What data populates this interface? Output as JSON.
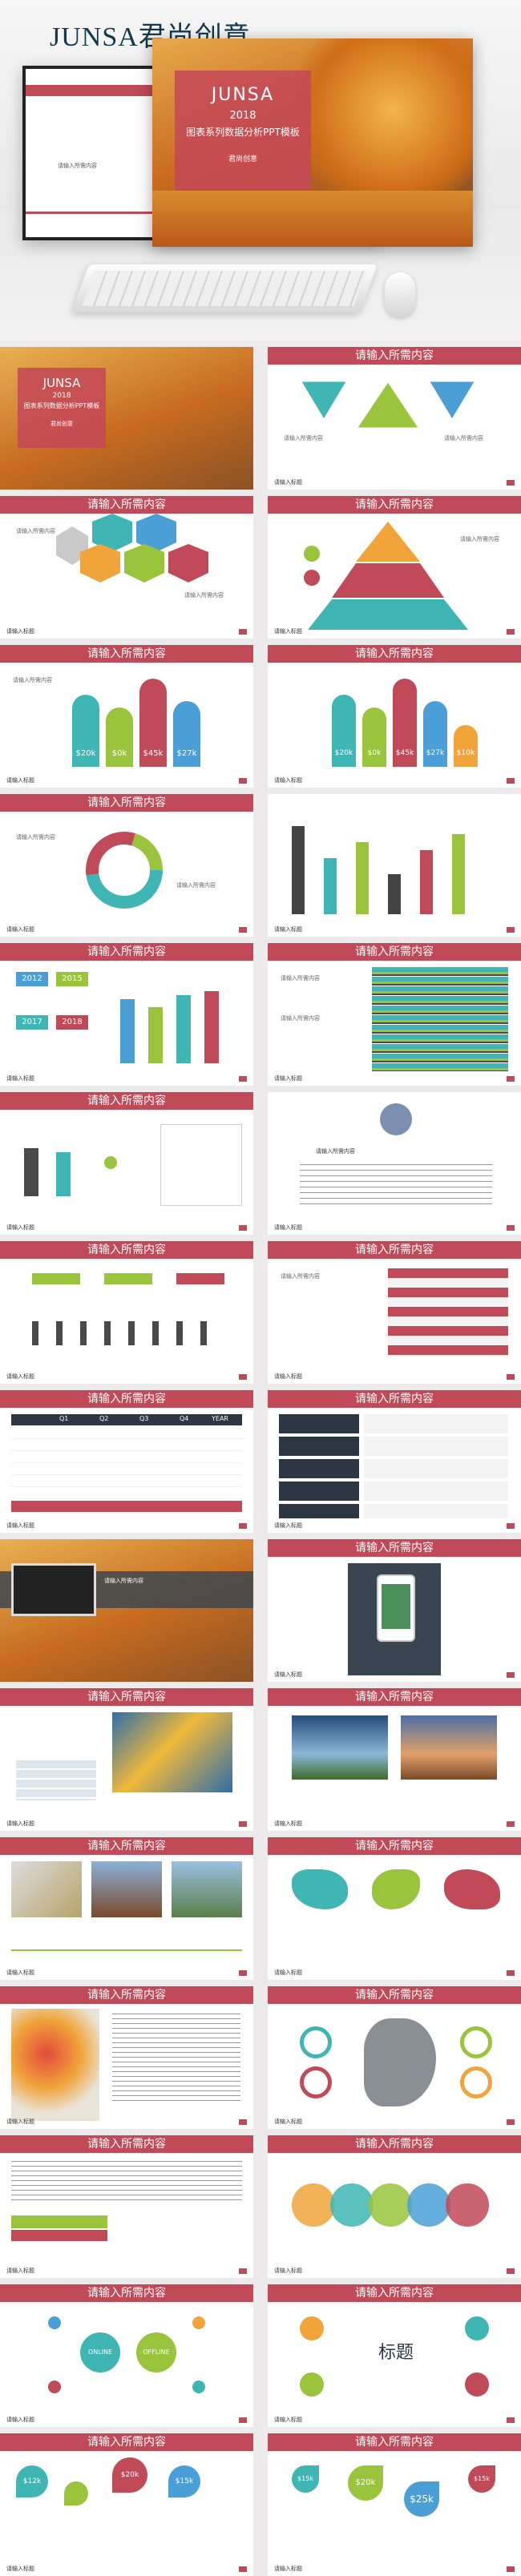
{
  "brand": "JUNSA君尚创意",
  "cover": {
    "title": "JUNSA",
    "year": "2018",
    "subtitle": "图表系列数据分析PPT模板",
    "logo": "君尚创意"
  },
  "hero_note": "请输入所需内容",
  "slide_heading": "请输入所需内容",
  "footer": "请输入标题",
  "values": {
    "v1": "$20k",
    "v2": "$0k",
    "v3": "$45k",
    "v4": "$27k",
    "v5": "$10k"
  },
  "years": [
    "2012",
    "2015",
    "2017",
    "2018"
  ],
  "quarters": [
    "Q1",
    "Q2",
    "Q3",
    "Q4",
    "YEAR"
  ],
  "center_title": "标题",
  "online": "ONLINE",
  "offline": "OFFLINE",
  "prices": [
    "$12k",
    "$20k",
    "$15k",
    "$25k",
    "$15k"
  ],
  "colors": {
    "accent": "#c04a58",
    "teal": "#3fb6b3",
    "green": "#9ac43c",
    "orange": "#f0a43a",
    "blue": "#4a9fd6"
  }
}
